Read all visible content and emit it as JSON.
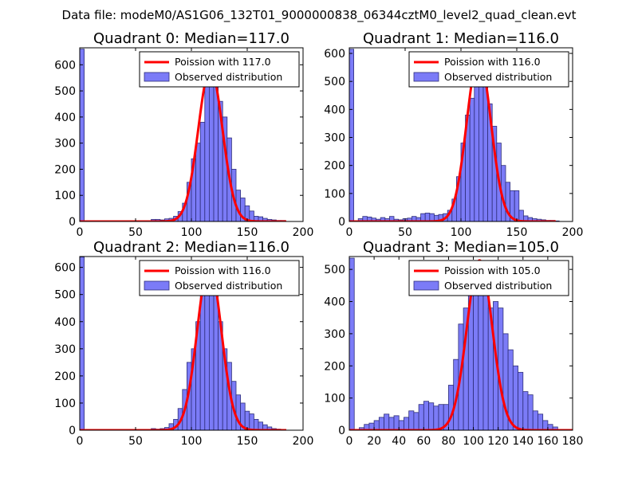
{
  "suptitle": "Data file: modeM0/AS1G06_132T01_9000000838_06344cztM0_level2_quad_clean.evt",
  "colors": {
    "bar_fill": "#7b7bf7",
    "bar_edge": "#2f2f7a",
    "poisson": "#ff0000",
    "frame": "#000000",
    "legend_edge": "#000000",
    "background": "#ffffff"
  },
  "chart_data": [
    {
      "type": "histogram",
      "title": "Quadrant 0: Median=117.0",
      "xlim": [
        0,
        200
      ],
      "ylim": [
        0,
        665
      ],
      "xticks": [
        0,
        50,
        100,
        150,
        200
      ],
      "yticks": [
        0,
        100,
        200,
        300,
        400,
        500,
        600
      ],
      "bin_width": 4,
      "bins": [
        [
          0,
          660
        ],
        [
          64,
          8
        ],
        [
          68,
          8
        ],
        [
          72,
          6
        ],
        [
          76,
          10
        ],
        [
          80,
          12
        ],
        [
          84,
          20
        ],
        [
          88,
          38
        ],
        [
          92,
          70
        ],
        [
          96,
          150
        ],
        [
          100,
          240
        ],
        [
          104,
          300
        ],
        [
          108,
          380
        ],
        [
          112,
          540
        ],
        [
          116,
          570
        ],
        [
          120,
          540
        ],
        [
          124,
          460
        ],
        [
          128,
          400
        ],
        [
          132,
          320
        ],
        [
          136,
          200
        ],
        [
          140,
          120
        ],
        [
          144,
          90
        ],
        [
          148,
          60
        ],
        [
          152,
          40
        ],
        [
          156,
          20
        ],
        [
          160,
          18
        ],
        [
          164,
          12
        ],
        [
          168,
          8
        ],
        [
          172,
          6
        ],
        [
          176,
          4
        ],
        [
          180,
          4
        ]
      ],
      "poisson_mean": 117.0,
      "poisson_peak": 585,
      "legend": [
        "Poission with 117.0",
        "Observed distribution"
      ],
      "legend_loc": "upper right"
    },
    {
      "type": "histogram",
      "title": "Quadrant 1: Median=116.0",
      "xlim": [
        0,
        200
      ],
      "ylim": [
        0,
        620
      ],
      "xticks": [
        0,
        50,
        100,
        150,
        200
      ],
      "yticks": [
        0,
        100,
        200,
        300,
        400,
        500,
        600
      ],
      "bin_width": 4,
      "bins": [
        [
          0,
          615
        ],
        [
          8,
          10
        ],
        [
          12,
          18
        ],
        [
          16,
          16
        ],
        [
          20,
          12
        ],
        [
          24,
          8
        ],
        [
          28,
          14
        ],
        [
          32,
          10
        ],
        [
          36,
          18
        ],
        [
          40,
          8
        ],
        [
          44,
          6
        ],
        [
          48,
          10
        ],
        [
          52,
          12
        ],
        [
          56,
          18
        ],
        [
          60,
          14
        ],
        [
          64,
          28
        ],
        [
          68,
          30
        ],
        [
          72,
          28
        ],
        [
          76,
          22
        ],
        [
          80,
          25
        ],
        [
          84,
          28
        ],
        [
          88,
          40
        ],
        [
          92,
          80
        ],
        [
          96,
          160
        ],
        [
          100,
          280
        ],
        [
          104,
          380
        ],
        [
          108,
          440
        ],
        [
          112,
          520
        ],
        [
          116,
          540
        ],
        [
          120,
          580
        ],
        [
          124,
          420
        ],
        [
          128,
          340
        ],
        [
          132,
          280
        ],
        [
          136,
          200
        ],
        [
          140,
          140
        ],
        [
          144,
          110
        ],
        [
          148,
          110
        ],
        [
          152,
          40
        ],
        [
          156,
          20
        ],
        [
          160,
          14
        ],
        [
          164,
          10
        ],
        [
          168,
          8
        ],
        [
          172,
          6
        ],
        [
          176,
          4
        ],
        [
          180,
          4
        ],
        [
          184,
          2
        ]
      ],
      "poisson_mean": 116.0,
      "poisson_peak": 590,
      "legend": [
        "Poission with 116.0",
        "Observed distribution"
      ],
      "legend_loc": "upper right"
    },
    {
      "type": "histogram",
      "title": "Quadrant 2: Median=116.0",
      "xlim": [
        0,
        200
      ],
      "ylim": [
        0,
        640
      ],
      "xticks": [
        0,
        50,
        100,
        150,
        200
      ],
      "yticks": [
        0,
        100,
        200,
        300,
        400,
        500,
        600
      ],
      "bin_width": 4,
      "bins": [
        [
          0,
          638
        ],
        [
          64,
          6
        ],
        [
          68,
          4
        ],
        [
          72,
          6
        ],
        [
          76,
          10
        ],
        [
          80,
          24
        ],
        [
          84,
          40
        ],
        [
          88,
          80
        ],
        [
          92,
          150
        ],
        [
          96,
          250
        ],
        [
          100,
          300
        ],
        [
          104,
          400
        ],
        [
          108,
          540
        ],
        [
          112,
          600
        ],
        [
          116,
          590
        ],
        [
          120,
          520
        ],
        [
          124,
          400
        ],
        [
          128,
          300
        ],
        [
          132,
          250
        ],
        [
          136,
          180
        ],
        [
          140,
          130
        ],
        [
          144,
          100
        ],
        [
          148,
          70
        ],
        [
          152,
          60
        ],
        [
          156,
          40
        ],
        [
          160,
          30
        ],
        [
          164,
          20
        ],
        [
          168,
          12
        ],
        [
          172,
          6
        ],
        [
          176,
          4
        ]
      ],
      "poisson_mean": 116.0,
      "poisson_peak": 610,
      "legend": [
        "Poission with 116.0",
        "Observed distribution"
      ],
      "legend_loc": "upper right"
    },
    {
      "type": "histogram",
      "title": "Quadrant 3: Median=105.0",
      "xlim": [
        0,
        180
      ],
      "ylim": [
        0,
        540
      ],
      "xticks": [
        0,
        20,
        40,
        60,
        80,
        100,
        120,
        140,
        160,
        180
      ],
      "yticks": [
        0,
        100,
        200,
        300,
        400,
        500
      ],
      "bin_width": 4,
      "bins": [
        [
          0,
          535
        ],
        [
          8,
          8
        ],
        [
          12,
          18
        ],
        [
          16,
          22
        ],
        [
          20,
          30
        ],
        [
          24,
          40
        ],
        [
          28,
          50
        ],
        [
          32,
          40
        ],
        [
          36,
          45
        ],
        [
          40,
          30
        ],
        [
          44,
          40
        ],
        [
          48,
          60
        ],
        [
          52,
          55
        ],
        [
          56,
          80
        ],
        [
          60,
          90
        ],
        [
          64,
          85
        ],
        [
          68,
          75
        ],
        [
          72,
          80
        ],
        [
          76,
          80
        ],
        [
          80,
          140
        ],
        [
          84,
          220
        ],
        [
          88,
          330
        ],
        [
          92,
          380
        ],
        [
          96,
          480
        ],
        [
          100,
          420
        ],
        [
          104,
          510
        ],
        [
          108,
          500
        ],
        [
          112,
          380
        ],
        [
          116,
          400
        ],
        [
          120,
          380
        ],
        [
          124,
          300
        ],
        [
          128,
          250
        ],
        [
          132,
          200
        ],
        [
          136,
          180
        ],
        [
          140,
          120
        ],
        [
          144,
          110
        ],
        [
          148,
          60
        ],
        [
          152,
          50
        ],
        [
          156,
          30
        ],
        [
          160,
          18
        ],
        [
          164,
          10
        ]
      ],
      "poisson_mean": 105.0,
      "poisson_peak": 528,
      "legend": [
        "Poission with 105.0",
        "Observed distribution"
      ],
      "legend_loc": "upper right"
    }
  ]
}
